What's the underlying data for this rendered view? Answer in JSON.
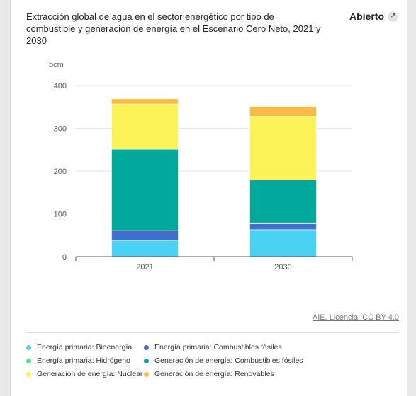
{
  "header": {
    "title": "Extracción global de agua en el sector energético por tipo de combustible y generación de energía en el Escenario Cero Neto, 2021 y 2030",
    "open_label": "Abierto",
    "open_icon": "external-link-icon"
  },
  "source_text": "AIE. Licencia: CC BY 4.0",
  "chart_data": {
    "type": "bar",
    "stacked": true,
    "ylabel": "bcm",
    "ylim": [
      0,
      400
    ],
    "yticks": [
      0,
      100,
      200,
      300,
      400
    ],
    "grid": true,
    "legend_position": "bottom",
    "categories": [
      "2021",
      "2030"
    ],
    "series": [
      {
        "name": "Energía primaria: Bioenergía",
        "color": "#4ad2f5",
        "values": [
          37,
          63
        ]
      },
      {
        "name": "Energía primaria: Combustibles fósiles",
        "color": "#3f6fd0",
        "values": [
          23,
          14
        ]
      },
      {
        "name": "Energía primaria: Hidrógeno",
        "color": "#56df8f",
        "values": [
          1,
          2
        ]
      },
      {
        "name": "Generación de energía: Combustibles fósiles",
        "color": "#00a99b",
        "values": [
          190,
          100
        ]
      },
      {
        "name": "Generación de energía: Nuclear",
        "color": "#fcf359",
        "values": [
          106,
          149
        ]
      },
      {
        "name": "Generación de energía: Renovables",
        "color": "#fbba45",
        "values": [
          12,
          23
        ]
      }
    ]
  }
}
